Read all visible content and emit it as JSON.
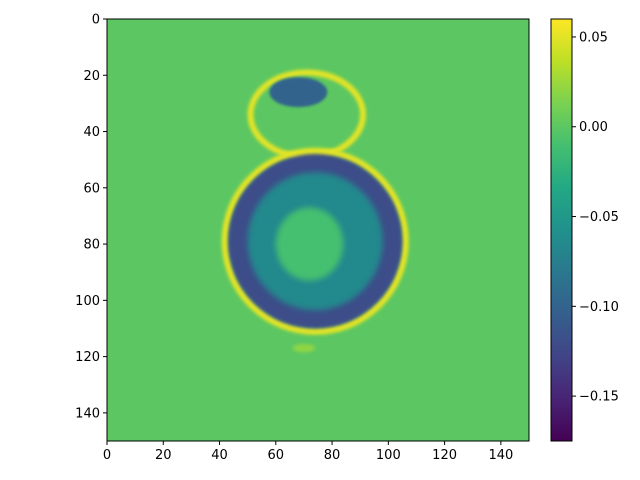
{
  "chart_data": {
    "type": "heatmap",
    "title": "",
    "xlabel": "",
    "ylabel": "",
    "xlim": [
      0,
      150
    ],
    "ylim": [
      150,
      0
    ],
    "x_ticks": [
      0,
      20,
      40,
      60,
      80,
      100,
      120,
      140
    ],
    "y_ticks": [
      0,
      20,
      40,
      60,
      80,
      100,
      120,
      140
    ],
    "x_tick_labels": [
      "0",
      "20",
      "40",
      "60",
      "80",
      "100",
      "120",
      "140"
    ],
    "y_tick_labels": [
      "0",
      "20",
      "40",
      "60",
      "80",
      "100",
      "120",
      "140"
    ],
    "colormap": "viridis",
    "background_value": 0.0,
    "colorbar": {
      "vmin": -0.175,
      "vmax": 0.06,
      "ticks": [
        0.05,
        0.0,
        -0.05,
        -0.1,
        -0.15
      ],
      "tick_labels": [
        "0.05",
        "0.00",
        "−0.05",
        "−0.10",
        "−0.15"
      ]
    },
    "regions": [
      {
        "shape": "ring",
        "center_x": 74,
        "center_y": 79,
        "inner_rx": 13,
        "inner_ry": 14,
        "outer_rx": 31,
        "outer_ry": 31,
        "value": -0.12
      },
      {
        "shape": "ring-edge",
        "center_x": 74,
        "center_y": 79,
        "rx": 32,
        "ry": 32,
        "value": 0.05
      },
      {
        "shape": "blob",
        "center_x": 73,
        "center_y": 48,
        "rx": 19,
        "ry": 14,
        "value": -0.08
      },
      {
        "shape": "blob-edge",
        "center_x": 71,
        "center_y": 34,
        "rx": 20,
        "ry": 15,
        "value": 0.05
      },
      {
        "shape": "blob",
        "center_x": 68,
        "center_y": 26,
        "rx": 10,
        "ry": 5,
        "value": -0.1
      },
      {
        "shape": "inner",
        "center_x": 72,
        "center_y": 80,
        "rx": 12,
        "ry": 13,
        "value": -0.01
      },
      {
        "shape": "fragment",
        "center_x": 70,
        "center_y": 117,
        "rx": 4,
        "ry": 1.5,
        "value": 0.02
      }
    ]
  }
}
